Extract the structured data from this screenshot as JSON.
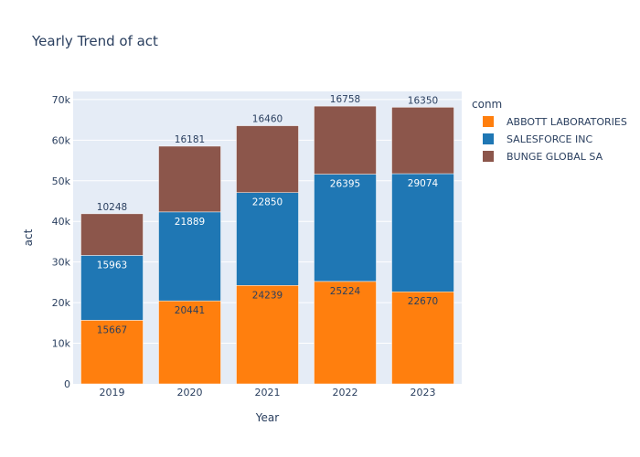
{
  "chart_data": {
    "type": "bar",
    "stacked": true,
    "title": "Yearly Trend of act",
    "xlabel": "Year",
    "ylabel": "act",
    "categories": [
      "2019",
      "2020",
      "2021",
      "2022",
      "2023"
    ],
    "ylim": [
      0,
      72000
    ],
    "yticks": [
      0,
      10000,
      20000,
      30000,
      40000,
      50000,
      60000,
      70000
    ],
    "ytick_labels": [
      "0",
      "10k",
      "20k",
      "30k",
      "40k",
      "50k",
      "60k",
      "70k"
    ],
    "grid": true,
    "legend_title": "conm",
    "legend_position": "right",
    "series": [
      {
        "name": "ABBOTT LABORATORIES",
        "color": "#ff7f0e",
        "label_color": "#2a3f5f",
        "label_position": "inside",
        "values": [
          15667,
          20441,
          24239,
          25224,
          22670
        ]
      },
      {
        "name": "SALESFORCE INC",
        "color": "#1f77b4",
        "label_color": "#ffffff",
        "label_position": "inside",
        "values": [
          15963,
          21889,
          22850,
          26395,
          29074
        ]
      },
      {
        "name": "BUNGE GLOBAL SA",
        "color": "#8c564b",
        "label_color": "#2a3f5f",
        "label_position": "outside",
        "values": [
          10248,
          16181,
          16460,
          16758,
          16350
        ]
      }
    ]
  }
}
